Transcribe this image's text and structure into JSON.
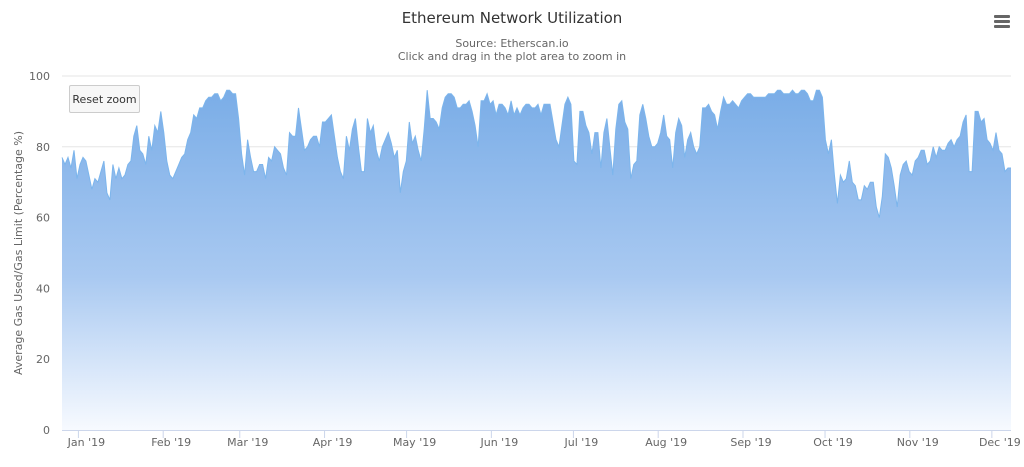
{
  "chart_data": {
    "type": "area",
    "title": "Ethereum Network Utilization",
    "subtitle_lines": [
      "Source: Etherscan.io",
      "Click and drag in the plot area to zoom in"
    ],
    "xlabel": "",
    "ylabel": "Average Gas Used/Gas Limit (Percentage %)",
    "ylim": [
      0,
      100
    ],
    "yticks": [
      0,
      20,
      40,
      60,
      80,
      100
    ],
    "grid": true,
    "x_start": "2018-12-26",
    "x_end": "2019-12-08",
    "xticks": [
      {
        "label": "Jan '19",
        "date": "2019-01-01"
      },
      {
        "label": "Feb '19",
        "date": "2019-02-01"
      },
      {
        "label": "Mar '19",
        "date": "2019-03-01"
      },
      {
        "label": "Apr '19",
        "date": "2019-04-01"
      },
      {
        "label": "May '19",
        "date": "2019-05-01"
      },
      {
        "label": "Jun '19",
        "date": "2019-06-01"
      },
      {
        "label": "Jul '19",
        "date": "2019-07-01"
      },
      {
        "label": "Aug '19",
        "date": "2019-08-01"
      },
      {
        "label": "Sep '19",
        "date": "2019-09-01"
      },
      {
        "label": "Oct '19",
        "date": "2019-10-01"
      },
      {
        "label": "Nov '19",
        "date": "2019-11-01"
      },
      {
        "label": "Dec '19",
        "date": "2019-12-01"
      }
    ],
    "values": [
      77,
      75,
      77,
      74,
      79,
      71,
      75,
      77,
      76,
      72,
      68,
      71,
      70,
      73,
      76,
      67,
      65,
      75,
      71,
      74,
      71,
      72,
      75,
      76,
      83,
      86,
      79,
      78,
      75,
      83,
      79,
      86,
      84,
      90,
      84,
      76,
      72,
      71,
      73,
      75,
      77,
      78,
      82,
      84,
      89,
      88,
      91,
      91,
      93,
      94,
      94,
      95,
      95,
      93,
      94,
      96,
      96,
      95,
      95,
      88,
      78,
      72,
      82,
      77,
      73,
      73,
      75,
      75,
      71,
      77,
      76,
      80,
      79,
      78,
      74,
      72,
      84,
      83,
      83,
      91,
      85,
      79,
      80,
      82,
      83,
      83,
      80,
      87,
      87,
      88,
      89,
      83,
      77,
      73,
      71,
      83,
      79,
      85,
      88,
      80,
      73,
      73,
      88,
      84,
      86,
      79,
      76,
      80,
      82,
      84,
      81,
      77,
      79,
      67,
      73,
      76,
      87,
      81,
      83,
      79,
      76,
      85,
      96,
      88,
      88,
      87,
      85,
      91,
      94,
      95,
      95,
      94,
      91,
      91,
      92,
      92,
      93,
      90,
      86,
      80,
      93,
      93,
      95,
      92,
      93,
      89,
      92,
      92,
      91,
      89,
      93,
      89,
      91,
      89,
      91,
      92,
      92,
      91,
      91,
      92,
      89,
      92,
      92,
      92,
      87,
      82,
      80,
      86,
      92,
      94,
      92,
      76,
      75,
      90,
      90,
      86,
      84,
      78,
      84,
      84,
      74,
      84,
      88,
      80,
      72,
      85,
      92,
      93,
      87,
      85,
      71,
      75,
      76,
      89,
      92,
      88,
      83,
      80,
      80,
      81,
      84,
      89,
      83,
      82,
      74,
      84,
      88,
      86,
      77,
      82,
      84,
      80,
      78,
      80,
      91,
      91,
      92,
      90,
      89,
      85,
      90,
      94,
      92,
      92,
      93,
      92,
      91,
      93,
      94,
      95,
      95,
      94,
      94,
      94,
      94,
      94,
      95,
      95,
      95,
      96,
      96,
      95,
      95,
      95,
      96,
      95,
      95,
      96,
      96,
      95,
      93,
      93,
      96,
      96,
      94,
      82,
      78,
      82,
      72,
      64,
      72,
      70,
      71,
      76,
      70,
      69,
      65,
      65,
      69,
      68,
      70,
      70,
      63,
      60,
      66,
      78,
      77,
      74,
      69,
      63,
      72,
      75,
      76,
      73,
      72,
      76,
      77,
      79,
      79,
      75,
      76,
      80,
      77,
      80,
      79,
      79,
      81,
      82,
      80,
      82,
      83,
      87,
      89,
      73,
      73,
      90,
      90,
      87,
      88,
      82,
      81,
      79,
      84,
      79,
      78,
      73,
      74,
      74
    ],
    "series_color": "#7cb5ec"
  },
  "controls": {
    "reset_zoom_label": "Reset zoom",
    "menu_icon": "hamburger-menu-icon"
  }
}
